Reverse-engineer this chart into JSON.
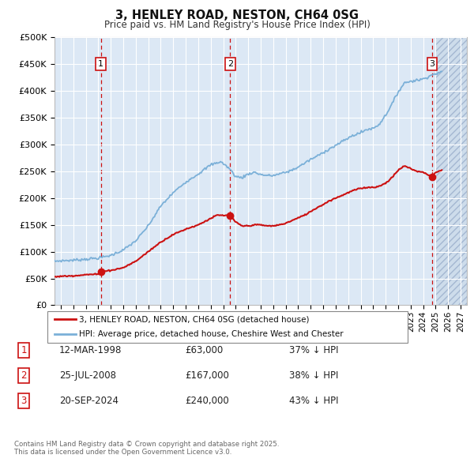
{
  "title": "3, HENLEY ROAD, NESTON, CH64 0SG",
  "subtitle": "Price paid vs. HM Land Registry's House Price Index (HPI)",
  "background_color": "#ffffff",
  "plot_bg_color": "#dce8f5",
  "grid_color": "#ffffff",
  "hpi_color": "#7bb0d8",
  "price_color": "#cc1111",
  "sale_color": "#cc1111",
  "legend_line1": "3, HENLEY ROAD, NESTON, CH64 0SG (detached house)",
  "legend_line2": "HPI: Average price, detached house, Cheshire West and Chester",
  "footer": "Contains HM Land Registry data © Crown copyright and database right 2025.\nThis data is licensed under the Open Government Licence v3.0.",
  "table_rows": [
    [
      "1",
      "12-MAR-1998",
      "£63,000",
      "37% ↓ HPI"
    ],
    [
      "2",
      "25-JUL-2008",
      "£167,000",
      "38% ↓ HPI"
    ],
    [
      "3",
      "20-SEP-2024",
      "£240,000",
      "43% ↓ HPI"
    ]
  ],
  "ylim": [
    0,
    500000
  ],
  "yticks": [
    0,
    50000,
    100000,
    150000,
    200000,
    250000,
    300000,
    350000,
    400000,
    450000,
    500000
  ],
  "xlim_start": 1994.5,
  "xlim_end": 2027.5,
  "future_start": 2025.0,
  "purchase_dates": [
    1998.2,
    2008.55,
    2024.72
  ],
  "purchase_prices": [
    63000,
    167000,
    240000
  ],
  "purchase_labels": [
    "1",
    "2",
    "3"
  ],
  "hpi_anchors": [
    [
      1994.5,
      82000
    ],
    [
      1995.0,
      83000
    ],
    [
      1996.0,
      84000
    ],
    [
      1997.0,
      86000
    ],
    [
      1998.0,
      88000
    ],
    [
      1999.0,
      93000
    ],
    [
      2000.0,
      103000
    ],
    [
      2001.0,
      120000
    ],
    [
      2002.0,
      148000
    ],
    [
      2003.0,
      185000
    ],
    [
      2004.0,
      210000
    ],
    [
      2005.0,
      230000
    ],
    [
      2006.0,
      245000
    ],
    [
      2007.0,
      262000
    ],
    [
      2007.8,
      268000
    ],
    [
      2008.5,
      255000
    ],
    [
      2009.0,
      240000
    ],
    [
      2009.5,
      238000
    ],
    [
      2010.0,
      245000
    ],
    [
      2010.5,
      248000
    ],
    [
      2011.0,
      244000
    ],
    [
      2011.5,
      242000
    ],
    [
      2012.0,
      242000
    ],
    [
      2012.5,
      245000
    ],
    [
      2013.0,
      248000
    ],
    [
      2013.5,
      252000
    ],
    [
      2014.0,
      258000
    ],
    [
      2014.5,
      265000
    ],
    [
      2015.0,
      272000
    ],
    [
      2015.5,
      278000
    ],
    [
      2016.0,
      285000
    ],
    [
      2016.5,
      292000
    ],
    [
      2017.0,
      298000
    ],
    [
      2017.5,
      305000
    ],
    [
      2018.0,
      312000
    ],
    [
      2018.5,
      318000
    ],
    [
      2019.0,
      322000
    ],
    [
      2019.5,
      328000
    ],
    [
      2020.0,
      330000
    ],
    [
      2020.5,
      338000
    ],
    [
      2021.0,
      355000
    ],
    [
      2021.5,
      375000
    ],
    [
      2022.0,
      398000
    ],
    [
      2022.5,
      415000
    ],
    [
      2023.0,
      418000
    ],
    [
      2023.5,
      420000
    ],
    [
      2024.0,
      422000
    ],
    [
      2024.5,
      428000
    ],
    [
      2025.0,
      432000
    ],
    [
      2025.5,
      435000
    ]
  ],
  "price_anchors": [
    [
      1994.5,
      53000
    ],
    [
      1995.0,
      54000
    ],
    [
      1996.0,
      55000
    ],
    [
      1997.0,
      57000
    ],
    [
      1998.0,
      58000
    ],
    [
      1998.2,
      63000
    ],
    [
      1999.0,
      65000
    ],
    [
      2000.0,
      70000
    ],
    [
      2001.0,
      82000
    ],
    [
      2002.0,
      100000
    ],
    [
      2003.0,
      118000
    ],
    [
      2004.0,
      132000
    ],
    [
      2005.0,
      142000
    ],
    [
      2006.0,
      150000
    ],
    [
      2007.0,
      162000
    ],
    [
      2007.5,
      168000
    ],
    [
      2008.55,
      167000
    ],
    [
      2009.0,
      155000
    ],
    [
      2009.5,
      148000
    ],
    [
      2010.0,
      148000
    ],
    [
      2010.5,
      150000
    ],
    [
      2011.0,
      150000
    ],
    [
      2011.5,
      148000
    ],
    [
      2012.0,
      148000
    ],
    [
      2012.5,
      150000
    ],
    [
      2013.0,
      153000
    ],
    [
      2013.5,
      158000
    ],
    [
      2014.0,
      163000
    ],
    [
      2014.5,
      168000
    ],
    [
      2015.0,
      175000
    ],
    [
      2015.5,
      182000
    ],
    [
      2016.0,
      188000
    ],
    [
      2016.5,
      195000
    ],
    [
      2017.0,
      200000
    ],
    [
      2017.5,
      205000
    ],
    [
      2018.0,
      210000
    ],
    [
      2018.5,
      215000
    ],
    [
      2019.0,
      218000
    ],
    [
      2019.5,
      220000
    ],
    [
      2020.0,
      220000
    ],
    [
      2020.5,
      222000
    ],
    [
      2021.0,
      228000
    ],
    [
      2021.5,
      238000
    ],
    [
      2022.0,
      252000
    ],
    [
      2022.5,
      260000
    ],
    [
      2023.0,
      255000
    ],
    [
      2023.5,
      250000
    ],
    [
      2024.0,
      248000
    ],
    [
      2024.72,
      240000
    ],
    [
      2025.0,
      248000
    ],
    [
      2025.5,
      252000
    ]
  ]
}
